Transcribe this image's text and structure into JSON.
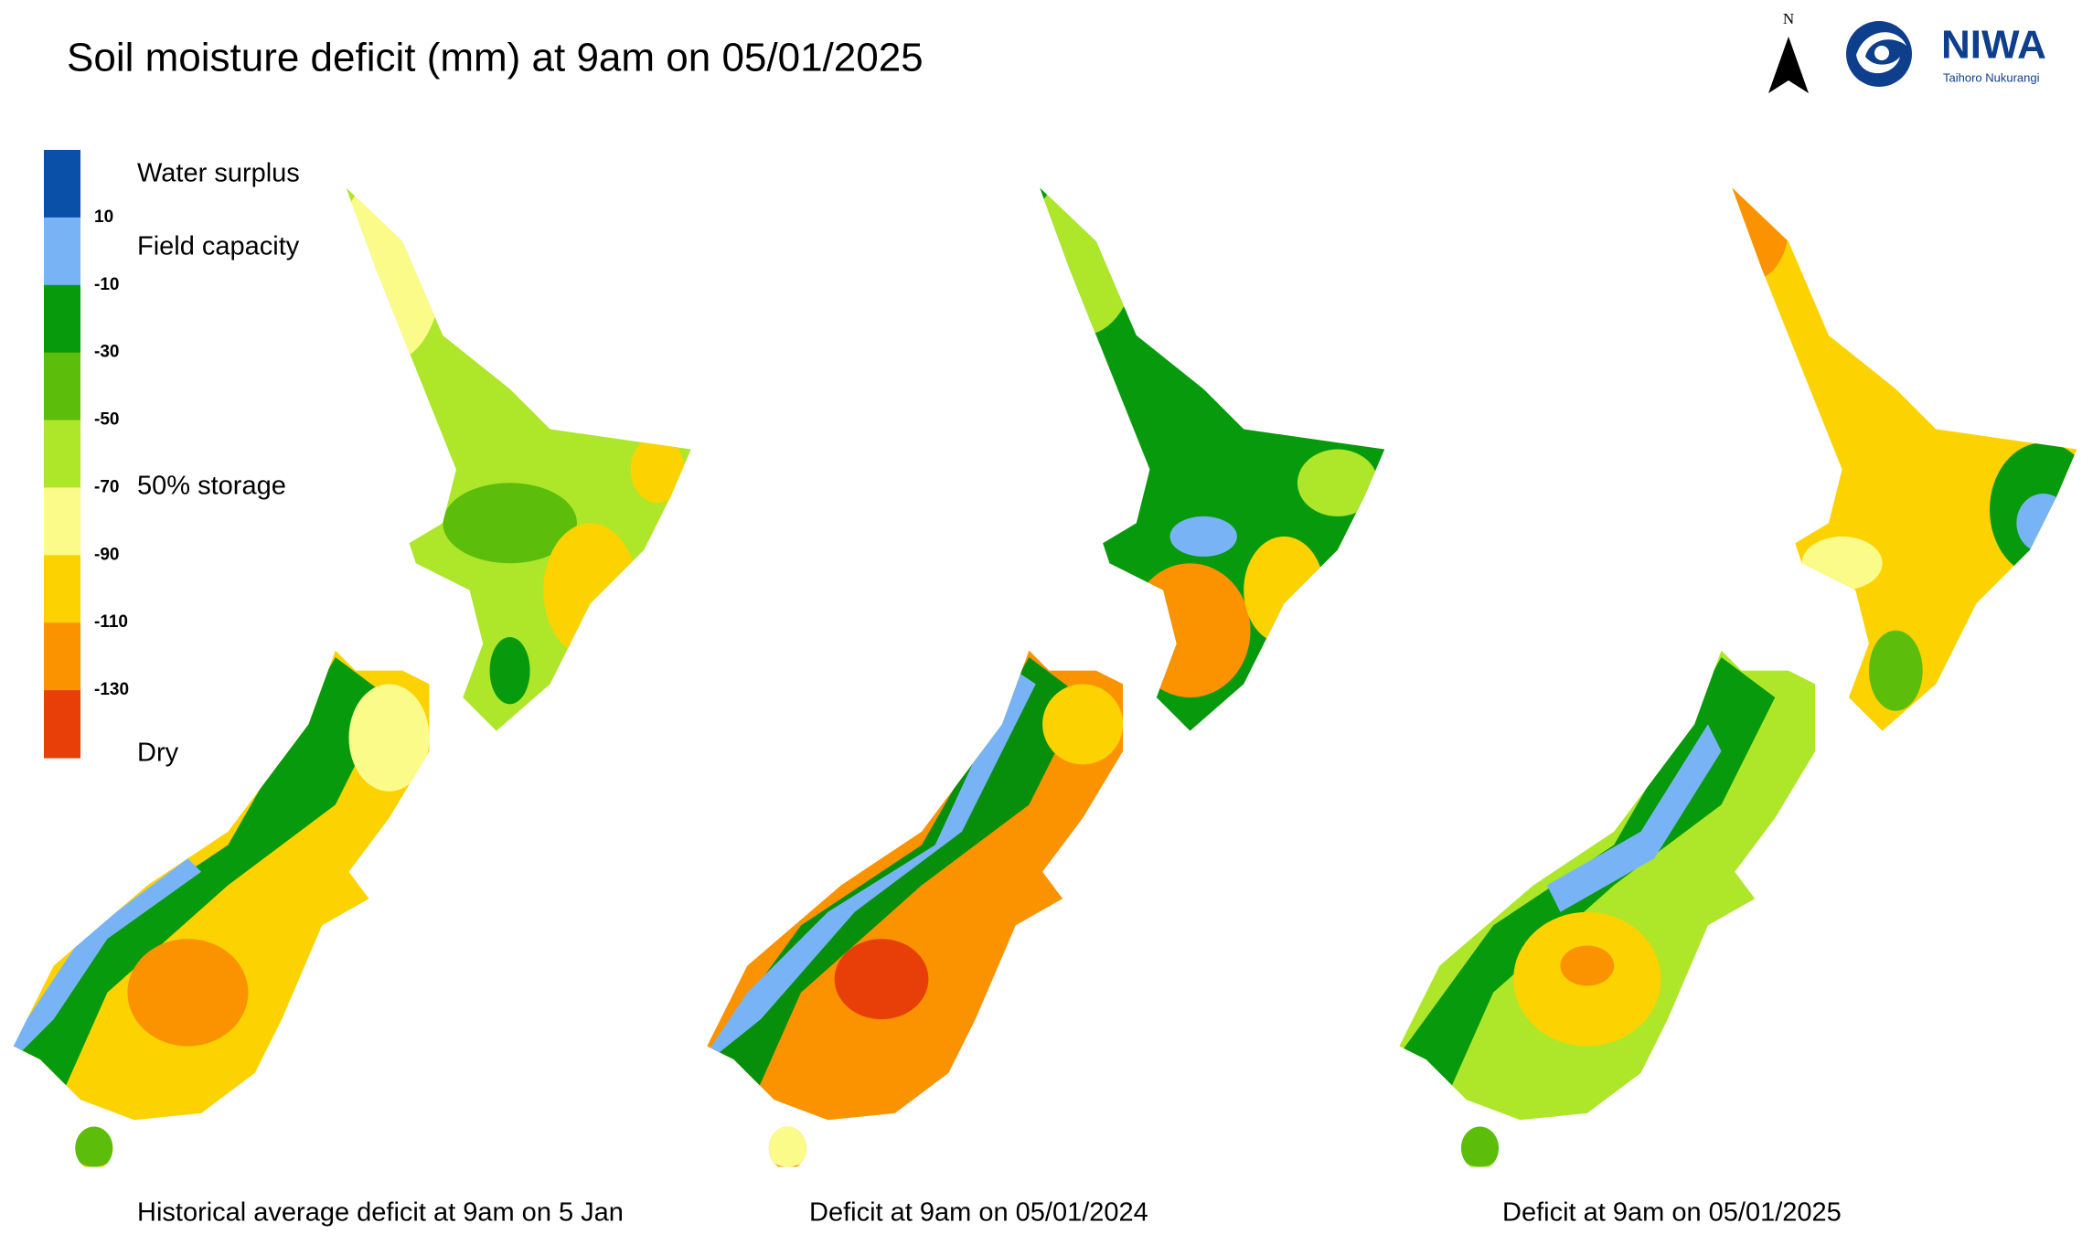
{
  "title": "Soil moisture deficit (mm) at  9am on 05/01/2025",
  "legend": {
    "colors": [
      "#0a4fa8",
      "#78b4f5",
      "#079a0c",
      "#5cbd0b",
      "#aee62a",
      "#fbfb8a",
      "#fcd201",
      "#fb9200",
      "#e83f09"
    ],
    "ticks": [
      10,
      -10,
      -30,
      -50,
      -70,
      -90,
      -110,
      -130
    ],
    "labels": [
      "Water surplus",
      "Field capacity",
      "50% storage",
      "Dry"
    ]
  },
  "captions": [
    "Historical average deficit at  9am on 5 Jan",
    "Deficit at  9am on 05/01/2024",
    "Deficit at  9am on 05/01/2025"
  ],
  "north": "N",
  "logo": {
    "name": "NIWA",
    "subtitle": "Taihoro Nukurangi"
  }
}
